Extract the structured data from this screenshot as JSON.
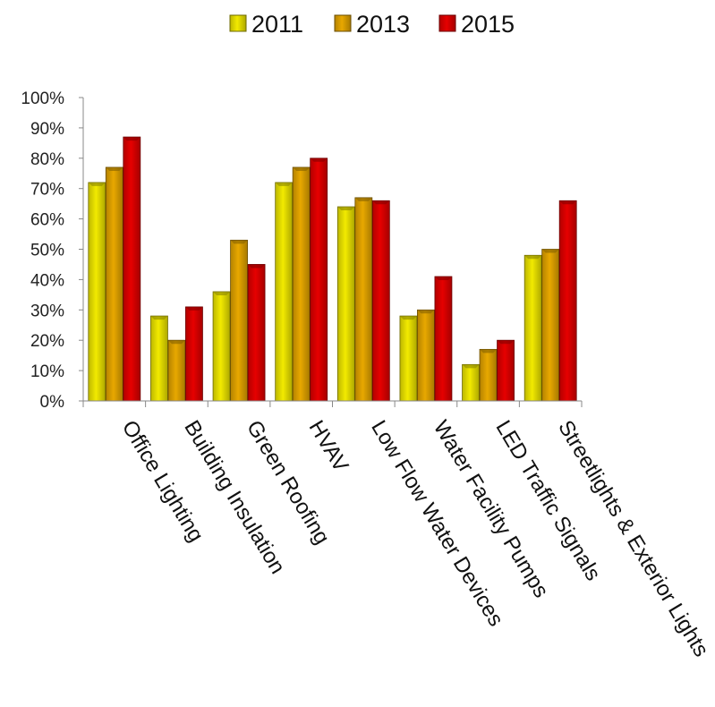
{
  "chart_data": {
    "type": "bar",
    "categories": [
      "Office Lighting",
      "Building Insulation",
      "Green Roofing",
      "HVAV",
      "Low Flow Water Devices",
      "Water Facility Pumps",
      "LED Traffic Signals",
      "Streetlights & Exterior Lights"
    ],
    "series": [
      {
        "name": "2011",
        "values": [
          72,
          28,
          36,
          72,
          64,
          28,
          12,
          48
        ],
        "color": "#f2ea00"
      },
      {
        "name": "2013",
        "values": [
          77,
          20,
          53,
          77,
          67,
          30,
          17,
          50
        ],
        "color": "#e8a800"
      },
      {
        "name": "2015",
        "values": [
          87,
          31,
          45,
          80,
          66,
          41,
          20,
          66
        ],
        "color": "#e60000"
      }
    ],
    "ylim": [
      0,
      100
    ],
    "yticks": [
      0,
      10,
      20,
      30,
      40,
      50,
      60,
      70,
      80,
      90,
      100
    ],
    "ytick_suffix": "%",
    "legend": "top",
    "grid": false,
    "title": "",
    "xlabel": "",
    "ylabel": ""
  }
}
